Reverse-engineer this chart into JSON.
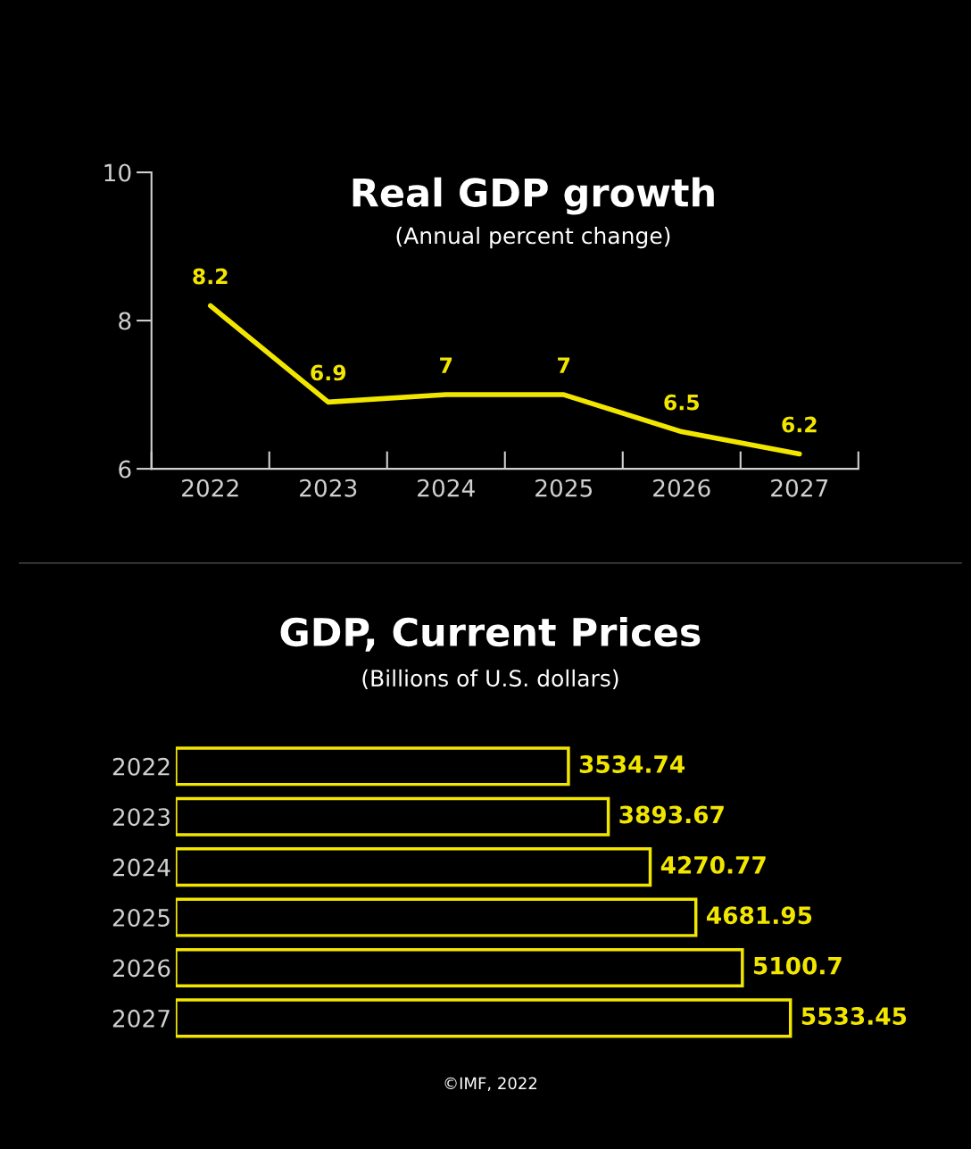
{
  "chart_data": [
    {
      "type": "line",
      "title": "Real GDP growth",
      "subtitle": "(Annual percent change)",
      "categories": [
        "2022",
        "2023",
        "2024",
        "2025",
        "2026",
        "2027"
      ],
      "series": [
        {
          "color": "#f2e600",
          "values": [
            8.2,
            6.9,
            7,
            7,
            6.5,
            6.2
          ]
        }
      ],
      "ylim": [
        6,
        10
      ],
      "yticks": [
        6,
        8,
        10
      ],
      "data_labels": true,
      "grid": false,
      "legend": false,
      "marker": "none",
      "line_style": "solid"
    },
    {
      "type": "bar",
      "orientation": "horizontal",
      "title": "GDP, Current Prices",
      "subtitle": "(Billions of U.S. dollars)",
      "categories": [
        "2022",
        "2023",
        "2024",
        "2025",
        "2026",
        "2027"
      ],
      "series": [
        {
          "color": "#f2e600",
          "values": [
            3534.74,
            3893.67,
            4270.77,
            4681.95,
            5100.7,
            5533.45
          ]
        }
      ],
      "data_labels": true,
      "tick_labels": "y",
      "grid": false,
      "legend": false,
      "annotations": [
        "©IMF, 2022"
      ]
    }
  ]
}
